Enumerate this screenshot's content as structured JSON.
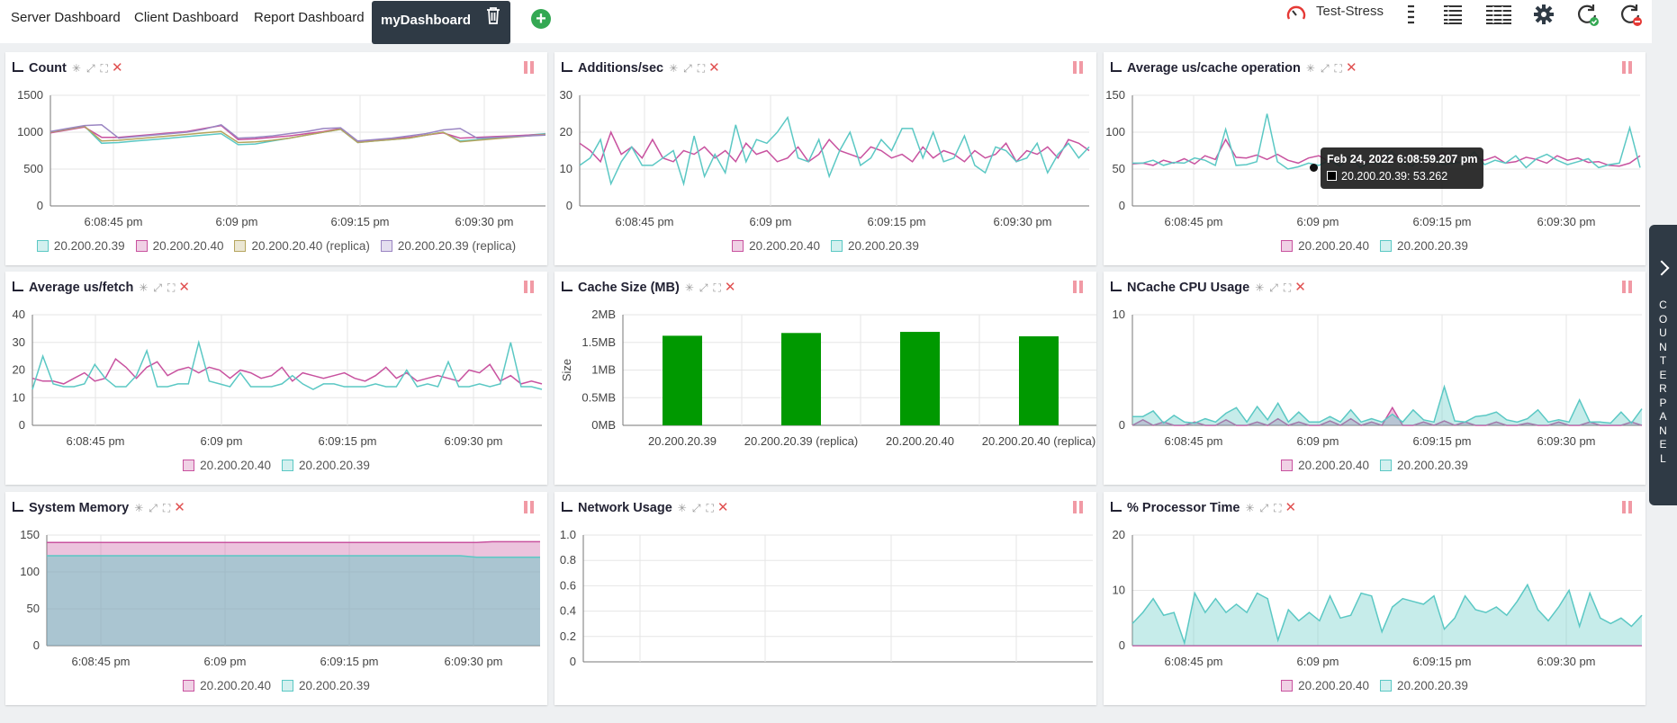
{
  "tabs": [
    {
      "label": "Server Dashboard"
    },
    {
      "label": "Client Dashboard"
    },
    {
      "label": "Report Dashboard"
    },
    {
      "label": "myDashboard"
    }
  ],
  "cluster_name": "Test-Stress",
  "counter_panel_label": "COUNTER PANEL",
  "colors": {
    "teal": "#5bc8c4",
    "magenta": "#c8529f",
    "olive": "#b5a55e",
    "purple": "#9a85c2",
    "green_bar": "#009900",
    "dark": "#2f3a45",
    "pause": "#f19aa5"
  },
  "x_ticks": [
    "6:08:45 pm",
    "6:09 pm",
    "6:09:15 pm",
    "6:09:30 pm"
  ],
  "tooltip": {
    "title": "Feb 24, 2022 6:08:59.207 pm",
    "line": "20.200.20.39: 53.262"
  },
  "panels": [
    {
      "title": "Count",
      "legend": [
        "20.200.20.39",
        "20.200.20.40",
        "20.200.20.40 (replica)",
        "20.200.20.39 (replica)"
      ]
    },
    {
      "title": "Additions/sec",
      "legend": [
        "20.200.20.40",
        "20.200.20.39"
      ]
    },
    {
      "title": "Average us/cache operation",
      "legend": [
        "20.200.20.40",
        "20.200.20.39"
      ]
    },
    {
      "title": "Average us/fetch",
      "legend": [
        "20.200.20.40",
        "20.200.20.39"
      ]
    },
    {
      "title": "Cache Size (MB)",
      "legend": []
    },
    {
      "title": "NCache CPU Usage",
      "legend": [
        "20.200.20.40",
        "20.200.20.39"
      ]
    },
    {
      "title": "System Memory",
      "legend": [
        "20.200.20.40",
        "20.200.20.39"
      ]
    },
    {
      "title": "Network Usage",
      "legend": []
    },
    {
      "title": "% Processor Time",
      "legend": [
        "20.200.20.40",
        "20.200.20.39"
      ]
    }
  ],
  "chart_data": [
    {
      "type": "line",
      "title": "Count",
      "ylim": [
        0,
        1500
      ],
      "y_ticks": [
        "0",
        "500",
        "1000",
        "1500"
      ],
      "series": [
        {
          "name": "20.200.20.39",
          "values": [
            1000,
            1040,
            1080,
            850,
            860,
            880,
            900,
            920,
            940,
            960,
            980,
            830,
            840,
            880,
            920,
            960,
            1000,
            1040,
            860,
            880,
            900,
            920,
            960,
            1000,
            880,
            900,
            920,
            940,
            960,
            980
          ]
        },
        {
          "name": "20.200.20.40",
          "values": [
            990,
            1030,
            1070,
            930,
            930,
            950,
            970,
            990,
            1010,
            1050,
            1090,
            900,
            910,
            930,
            950,
            980,
            1010,
            1050,
            870,
            890,
            910,
            930,
            960,
            990,
            920,
            930,
            940,
            950,
            960,
            970
          ]
        },
        {
          "name": "20.200.20.40 (replica)",
          "values": [
            1000,
            1040,
            1080,
            880,
            890,
            910,
            930,
            950,
            970,
            990,
            1010,
            860,
            870,
            890,
            920,
            960,
            1000,
            1040,
            860,
            880,
            900,
            920,
            960,
            1000,
            870,
            890,
            910,
            930,
            950,
            970
          ]
        },
        {
          "name": "20.200.20.39 (replica)",
          "values": [
            1010,
            1050,
            1090,
            1100,
            920,
            940,
            960,
            980,
            1000,
            1040,
            1100,
            920,
            930,
            950,
            980,
            1010,
            1050,
            1060,
            880,
            900,
            920,
            950,
            980,
            1030,
            1050,
            920,
            930,
            940,
            950,
            960
          ]
        }
      ]
    },
    {
      "type": "line",
      "title": "Additions/sec",
      "ylim": [
        0,
        30
      ],
      "y_ticks": [
        "0",
        "10",
        "20",
        "30"
      ],
      "series": [
        {
          "name": "20.200.20.40",
          "values": [
            17,
            15,
            12,
            20,
            14,
            16,
            13,
            18,
            13,
            12,
            15,
            14,
            16,
            13,
            15,
            12,
            17,
            14,
            15,
            12,
            13,
            16,
            12,
            14,
            18,
            15,
            14,
            13,
            16,
            15,
            13,
            14,
            12,
            16,
            13,
            15,
            14,
            12,
            15,
            13,
            14,
            17,
            12,
            15,
            14,
            16,
            13,
            18,
            17,
            15
          ]
        },
        {
          "name": "20.200.20.39",
          "values": [
            11,
            13,
            18,
            6,
            12,
            16,
            11,
            11,
            13,
            15,
            6,
            19,
            8,
            14,
            9,
            22,
            12,
            18,
            17,
            20,
            24,
            13,
            12,
            18,
            8,
            15,
            20,
            11,
            13,
            18,
            15,
            21,
            21,
            13,
            20,
            12,
            13,
            19,
            11,
            9,
            16,
            15,
            12,
            13,
            17,
            9,
            14,
            17,
            13,
            16
          ]
        }
      ]
    },
    {
      "type": "line",
      "title": "Average us/cache operation",
      "ylim": [
        0,
        150
      ],
      "y_ticks": [
        "0",
        "50",
        "100",
        "150"
      ],
      "series": [
        {
          "name": "20.200.20.40",
          "values": [
            57,
            58,
            55,
            62,
            58,
            64,
            57,
            68,
            63,
            90,
            66,
            65,
            69,
            63,
            70,
            62,
            58,
            65,
            68,
            60,
            64,
            66,
            59,
            61,
            66,
            60,
            64,
            70,
            63,
            66,
            72,
            60,
            58,
            66,
            62,
            67,
            58,
            60,
            66,
            63,
            58,
            68,
            62,
            65,
            59,
            60,
            55,
            54,
            58,
            68
          ]
        },
        {
          "name": "20.200.20.39",
          "values": [
            58,
            58,
            62,
            55,
            59,
            58,
            65,
            62,
            55,
            104,
            55,
            56,
            60,
            125,
            60,
            50,
            53,
            58,
            55,
            62,
            54,
            68,
            52,
            60,
            57,
            74,
            60,
            54,
            69,
            63,
            56,
            58,
            60,
            73,
            56,
            62,
            58,
            68,
            52,
            64,
            70,
            62,
            56,
            60,
            64,
            52,
            56,
            58,
            106,
            52
          ]
        }
      ]
    },
    {
      "type": "line",
      "title": "Average us/fetch",
      "ylim": [
        0,
        40
      ],
      "y_ticks": [
        "0",
        "10",
        "20",
        "30",
        "40"
      ],
      "series": [
        {
          "name": "20.200.20.40",
          "values": [
            17,
            16,
            16,
            15,
            17,
            19,
            16,
            17,
            24,
            21,
            17,
            21,
            23,
            18,
            20,
            21,
            19,
            21,
            20,
            17,
            20,
            19,
            17,
            18,
            21,
            16,
            19,
            18,
            17,
            18,
            19,
            17,
            16,
            18,
            21,
            17,
            19,
            16,
            17,
            18,
            17,
            16,
            20,
            19,
            22,
            16,
            18,
            15,
            16,
            15
          ]
        },
        {
          "name": "20.200.20.39",
          "values": [
            13,
            25,
            15,
            14,
            14,
            15,
            22,
            17,
            14,
            14,
            18,
            27,
            14,
            14,
            15,
            15,
            30,
            16,
            15,
            14,
            19,
            14,
            14,
            14,
            15,
            18,
            15,
            13,
            15,
            15,
            14,
            14,
            14,
            15,
            14,
            14,
            20,
            14,
            15,
            14,
            23,
            14,
            14,
            15,
            14,
            15,
            30,
            14,
            14,
            13
          ]
        }
      ]
    },
    {
      "type": "bar",
      "title": "Cache Size (MB)",
      "ylabel": "Size",
      "ylim": [
        0,
        2
      ],
      "y_ticks": [
        "0MB",
        "0.5MB",
        "1MB",
        "1.5MB",
        "2MB"
      ],
      "categories": [
        "20.200.20.39",
        "20.200.20.39 (replica)",
        "20.200.20.40",
        "20.200.20.40 (replica)"
      ],
      "values": [
        1.62,
        1.67,
        1.69,
        1.61
      ]
    },
    {
      "type": "area",
      "title": "NCache CPU Usage",
      "ylim": [
        0,
        10
      ],
      "y_ticks": [
        "0",
        "10"
      ],
      "series": [
        {
          "name": "20.200.20.40",
          "values": [
            0,
            0.5,
            0,
            0.3,
            0,
            0,
            0.3,
            0,
            0,
            0.5,
            0,
            0,
            0.3,
            0,
            0.6,
            0,
            0.3,
            0,
            0,
            0.4,
            0,
            0.6,
            0,
            0.3,
            0,
            1.6,
            0,
            0,
            0.3,
            0,
            0.4,
            0,
            0.3,
            0,
            0,
            0.3,
            0,
            0,
            0.2,
            0,
            0,
            0.3,
            0,
            0,
            0.3,
            0,
            0,
            0,
            0.3,
            0
          ]
        },
        {
          "name": "20.200.20.39",
          "values": [
            0.8,
            0.8,
            1.3,
            0.2,
            0.9,
            0.3,
            0.2,
            0.6,
            0.3,
            1.1,
            1.6,
            0.3,
            1.7,
            0.5,
            2.0,
            0.3,
            1.2,
            0.3,
            0.3,
            0.8,
            0.3,
            1.4,
            0.3,
            0.6,
            0.3,
            1.0,
            0.3,
            1.4,
            0.5,
            0.3,
            3.5,
            0.4,
            0.3,
            0.8,
            0.9,
            1.2,
            0.5,
            0.3,
            0.6,
            1.4,
            0.3,
            0.5,
            0.3,
            2.3,
            0.3,
            0.3,
            0.2,
            1.2,
            0.2,
            1.5
          ]
        }
      ]
    },
    {
      "type": "area",
      "title": "System Memory",
      "ylim": [
        0,
        150
      ],
      "y_ticks": [
        "0",
        "50",
        "100",
        "150"
      ],
      "series": [
        {
          "name": "20.200.20.40",
          "values": [
            140,
            140,
            140,
            140,
            140,
            140,
            140,
            140,
            140,
            140,
            140,
            140,
            140,
            140,
            140,
            140,
            140,
            140,
            140,
            140,
            140,
            140,
            140,
            140,
            140,
            140,
            140,
            140,
            141,
            141,
            141,
            141
          ]
        },
        {
          "name": "20.200.20.39",
          "values": [
            122,
            122,
            122,
            122,
            122,
            122,
            122,
            122,
            122,
            122,
            122,
            122,
            122,
            122,
            122,
            122,
            122,
            122,
            122,
            122,
            122,
            122,
            122,
            122,
            122,
            122,
            122,
            120,
            120,
            120,
            120,
            120
          ]
        }
      ]
    },
    {
      "type": "line",
      "title": "Network Usage",
      "ylim": [
        0,
        1
      ],
      "y_ticks": [
        "0",
        "0.2",
        "0.4",
        "0.6",
        "0.8",
        "1.0"
      ],
      "series": []
    },
    {
      "type": "area",
      "title": "% Processor Time",
      "ylim": [
        0,
        20
      ],
      "y_ticks": [
        "0",
        "10",
        "20"
      ],
      "series": [
        {
          "name": "20.200.20.40",
          "values": [
            0,
            0,
            0,
            0,
            0,
            0,
            0,
            0,
            0,
            0,
            0,
            0,
            0,
            0,
            0,
            0,
            0,
            0,
            0,
            0,
            0,
            0,
            0,
            0,
            0,
            0,
            0,
            0,
            0,
            0,
            0,
            0,
            0,
            0,
            0,
            0,
            0,
            0,
            0,
            0,
            0,
            0,
            0,
            0,
            0,
            0,
            0,
            0,
            0,
            0
          ]
        },
        {
          "name": "20.200.20.39",
          "values": [
            4,
            6,
            8.5,
            5.5,
            6,
            0.5,
            9.5,
            6,
            8.5,
            6,
            7.5,
            6,
            9.5,
            8.5,
            1,
            6.5,
            4.5,
            6,
            4.5,
            9,
            5,
            5.5,
            9.5,
            9,
            2.5,
            7,
            8.5,
            8,
            7.5,
            9,
            3,
            5,
            9,
            6.5,
            6,
            7,
            5.5,
            8,
            11,
            6.5,
            4.5,
            7,
            10,
            3.5,
            9.5,
            5,
            4,
            5,
            3.5,
            5.5
          ]
        }
      ]
    }
  ]
}
